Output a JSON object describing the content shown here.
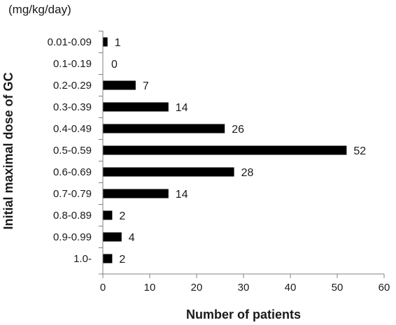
{
  "chart_data": {
    "type": "bar",
    "orientation": "horizontal",
    "categories": [
      "0.01-0.09",
      "0.1-0.19",
      "0.2-0.29",
      "0.3-0.39",
      "0.4-0.49",
      "0.5-0.59",
      "0.6-0.69",
      "0.7-0.79",
      "0.8-0.89",
      "0.9-0.99",
      "1.0-"
    ],
    "values": [
      1,
      0,
      7,
      14,
      26,
      52,
      28,
      14,
      2,
      4,
      2
    ],
    "data_labels": [
      "1",
      "0",
      "7",
      "14",
      "26",
      "52",
      "28",
      "14",
      "2",
      "4",
      "2"
    ],
    "xlabel": "Number of patients",
    "ylabel": "Initial maximal dose of GC",
    "unit_label": "(mg/kg/day)",
    "xlim": [
      0,
      60
    ],
    "xticks": [
      0,
      10,
      20,
      30,
      40,
      50,
      60
    ],
    "grid": false,
    "legend": "none",
    "colors": {
      "bar": "#000000",
      "axis": "#808080",
      "text": "#1a1a1a"
    }
  }
}
